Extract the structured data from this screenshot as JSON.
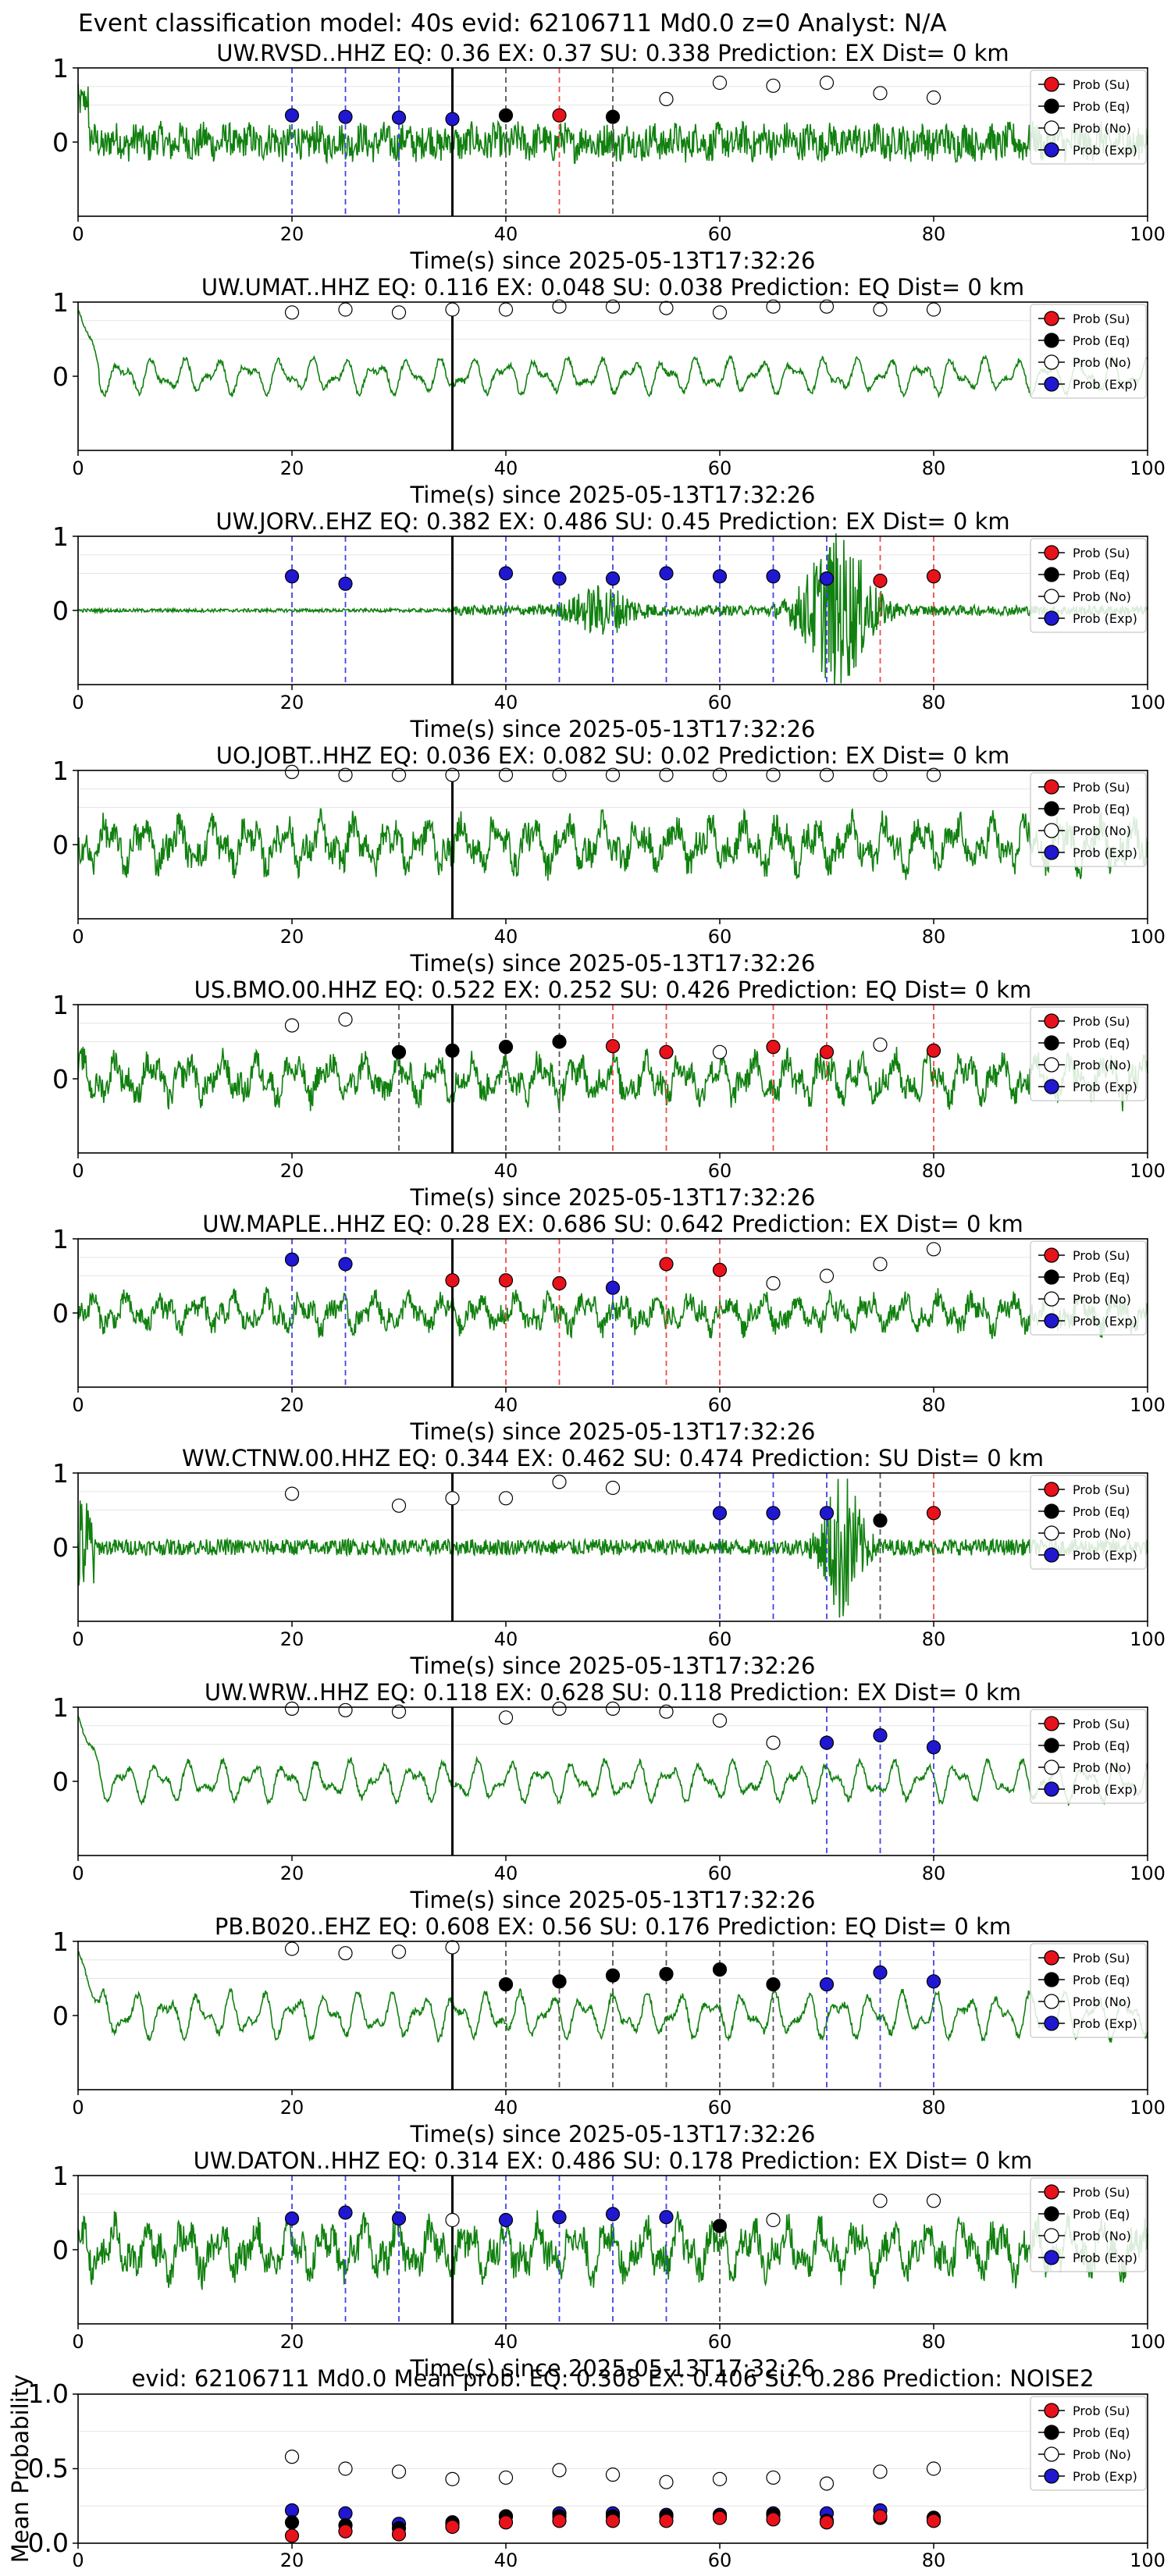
{
  "suptitle": "Event classification model: 40s evid: 62106711 Md0.0 z=0 Analyst: N/A",
  "legend": [
    "Prob (Su)",
    "Prob (Eq)",
    "Prob (No)",
    "Prob (Exp)"
  ],
  "colors": {
    "su": "#e8121b",
    "eq": "#000000",
    "no": "#ffffff",
    "exp": "#1f18d0",
    "wave": "#118010",
    "su_line": "#ef4c4c",
    "eq_line": "#555555",
    "exp_line": "#4343e6"
  },
  "chart_data": [
    {
      "type": "line",
      "title": "UW.RVSD..HHZ   EQ: 0.36   EX: 0.37   SU: 0.338   Prediction: EX    Dist= 0 km",
      "xlabel": "Time(s) since 2025-05-13T17:32:26",
      "xlim": [
        0,
        100
      ],
      "ylim": [
        -1,
        1
      ],
      "xticks": [
        0,
        20,
        40,
        60,
        80,
        100
      ],
      "yticks": [
        0,
        1
      ],
      "onset": 35,
      "trace": {
        "style": "broadband",
        "amp": 0.32
      },
      "points": [
        {
          "t": 20,
          "p": 0.36,
          "c": "exp"
        },
        {
          "t": 25,
          "p": 0.34,
          "c": "exp"
        },
        {
          "t": 30,
          "p": 0.33,
          "c": "exp"
        },
        {
          "t": 35,
          "p": 0.31,
          "c": "exp"
        },
        {
          "t": 40,
          "p": 0.36,
          "c": "eq"
        },
        {
          "t": 45,
          "p": 0.36,
          "c": "su"
        },
        {
          "t": 50,
          "p": 0.34,
          "c": "eq"
        },
        {
          "t": 55,
          "p": 0.58,
          "c": "no"
        },
        {
          "t": 60,
          "p": 0.8,
          "c": "no"
        },
        {
          "t": 65,
          "p": 0.76,
          "c": "no"
        },
        {
          "t": 70,
          "p": 0.8,
          "c": "no"
        },
        {
          "t": 75,
          "p": 0.66,
          "c": "no"
        },
        {
          "t": 80,
          "p": 0.6,
          "c": "no"
        }
      ]
    },
    {
      "type": "line",
      "title": "UW.UMAT..HHZ   EQ: 0.116  EX: 0.048  SU: 0.038   Prediction: EQ    Dist= 0 km",
      "xlabel": "Time(s) since 2025-05-13T17:32:26",
      "xlim": [
        0,
        100
      ],
      "ylim": [
        -1,
        1
      ],
      "xticks": [
        0,
        20,
        40,
        60,
        80,
        100
      ],
      "yticks": [
        0,
        1
      ],
      "onset": 35,
      "trace": {
        "style": "smooth",
        "amp": 0.28
      },
      "points": [
        {
          "t": 20,
          "p": 0.86,
          "c": "no"
        },
        {
          "t": 25,
          "p": 0.9,
          "c": "no"
        },
        {
          "t": 30,
          "p": 0.86,
          "c": "no"
        },
        {
          "t": 35,
          "p": 0.9,
          "c": "no"
        },
        {
          "t": 40,
          "p": 0.9,
          "c": "no"
        },
        {
          "t": 45,
          "p": 0.94,
          "c": "no"
        },
        {
          "t": 50,
          "p": 0.94,
          "c": "no"
        },
        {
          "t": 55,
          "p": 0.92,
          "c": "no"
        },
        {
          "t": 60,
          "p": 0.86,
          "c": "no"
        },
        {
          "t": 65,
          "p": 0.94,
          "c": "no"
        },
        {
          "t": 70,
          "p": 0.94,
          "c": "no"
        },
        {
          "t": 75,
          "p": 0.9,
          "c": "no"
        },
        {
          "t": 80,
          "p": 0.9,
          "c": "no"
        }
      ]
    },
    {
      "type": "line",
      "title": "UW.JORV..EHZ   EQ: 0.382  EX: 0.486  SU: 0.45   Prediction: EX    Dist= 0 km",
      "xlabel": "Time(s) since 2025-05-13T17:32:26",
      "xlim": [
        0,
        100
      ],
      "ylim": [
        -1,
        1
      ],
      "xticks": [
        0,
        20,
        40,
        60,
        80,
        100
      ],
      "yticks": [
        0,
        1
      ],
      "onset": 35,
      "trace": {
        "style": "bursts",
        "amp": 0.04
      },
      "points": [
        {
          "t": 20,
          "p": 0.46,
          "c": "exp"
        },
        {
          "t": 25,
          "p": 0.36,
          "c": "exp"
        },
        {
          "t": 40,
          "p": 0.5,
          "c": "exp"
        },
        {
          "t": 45,
          "p": 0.43,
          "c": "exp"
        },
        {
          "t": 50,
          "p": 0.43,
          "c": "exp"
        },
        {
          "t": 55,
          "p": 0.5,
          "c": "exp"
        },
        {
          "t": 60,
          "p": 0.46,
          "c": "exp"
        },
        {
          "t": 65,
          "p": 0.46,
          "c": "exp"
        },
        {
          "t": 70,
          "p": 0.43,
          "c": "exp"
        },
        {
          "t": 75,
          "p": 0.4,
          "c": "su"
        },
        {
          "t": 80,
          "p": 0.46,
          "c": "su"
        }
      ]
    },
    {
      "type": "line",
      "title": "UO.JOBT..HHZ   EQ: 0.036  EX: 0.082  SU: 0.02   Prediction: EX    Dist= 0 km",
      "xlabel": "Time(s) since 2025-05-13T17:32:26",
      "xlim": [
        0,
        100
      ],
      "ylim": [
        -1,
        1
      ],
      "xticks": [
        0,
        20,
        40,
        60,
        80,
        100
      ],
      "yticks": [
        0,
        1
      ],
      "onset": 35,
      "trace": {
        "style": "rough",
        "amp": 0.42
      },
      "points": [
        {
          "t": 20,
          "p": 0.98,
          "c": "no"
        },
        {
          "t": 25,
          "p": 0.94,
          "c": "no"
        },
        {
          "t": 30,
          "p": 0.94,
          "c": "no"
        },
        {
          "t": 35,
          "p": 0.94,
          "c": "no"
        },
        {
          "t": 40,
          "p": 0.94,
          "c": "no"
        },
        {
          "t": 45,
          "p": 0.94,
          "c": "no"
        },
        {
          "t": 50,
          "p": 0.94,
          "c": "no"
        },
        {
          "t": 55,
          "p": 0.94,
          "c": "no"
        },
        {
          "t": 60,
          "p": 0.94,
          "c": "no"
        },
        {
          "t": 65,
          "p": 0.94,
          "c": "no"
        },
        {
          "t": 70,
          "p": 0.94,
          "c": "no"
        },
        {
          "t": 75,
          "p": 0.94,
          "c": "no"
        },
        {
          "t": 80,
          "p": 0.94,
          "c": "no"
        }
      ]
    },
    {
      "type": "line",
      "title": "US.BMO.00.HHZ   EQ: 0.522  EX: 0.252  SU: 0.426   Prediction: EQ    Dist= 0 km",
      "xlabel": "Time(s) since 2025-05-13T17:32:26",
      "xlim": [
        0,
        100
      ],
      "ylim": [
        -1,
        1
      ],
      "xticks": [
        0,
        20,
        40,
        60,
        80,
        100
      ],
      "yticks": [
        0,
        1
      ],
      "onset": 35,
      "trace": {
        "style": "rough",
        "amp": 0.38
      },
      "points": [
        {
          "t": 20,
          "p": 0.72,
          "c": "no"
        },
        {
          "t": 25,
          "p": 0.8,
          "c": "no"
        },
        {
          "t": 30,
          "p": 0.36,
          "c": "eq"
        },
        {
          "t": 35,
          "p": 0.38,
          "c": "eq"
        },
        {
          "t": 40,
          "p": 0.43,
          "c": "eq"
        },
        {
          "t": 45,
          "p": 0.5,
          "c": "eq"
        },
        {
          "t": 50,
          "p": 0.44,
          "c": "su"
        },
        {
          "t": 55,
          "p": 0.36,
          "c": "su"
        },
        {
          "t": 60,
          "p": 0.36,
          "c": "no"
        },
        {
          "t": 65,
          "p": 0.43,
          "c": "su"
        },
        {
          "t": 70,
          "p": 0.36,
          "c": "su"
        },
        {
          "t": 75,
          "p": 0.46,
          "c": "no"
        },
        {
          "t": 80,
          "p": 0.38,
          "c": "su"
        }
      ]
    },
    {
      "type": "line",
      "title": "UW.MAPLE..HHZ   EQ: 0.28  EX: 0.686  SU: 0.642   Prediction: EX    Dist= 0 km",
      "xlabel": "Time(s) since 2025-05-13T17:32:26",
      "xlim": [
        0,
        100
      ],
      "ylim": [
        -1,
        1
      ],
      "xticks": [
        0,
        20,
        40,
        60,
        80,
        100
      ],
      "yticks": [
        0,
        1
      ],
      "onset": 35,
      "trace": {
        "style": "rough",
        "amp": 0.3
      },
      "points": [
        {
          "t": 20,
          "p": 0.72,
          "c": "exp"
        },
        {
          "t": 25,
          "p": 0.66,
          "c": "exp"
        },
        {
          "t": 35,
          "p": 0.44,
          "c": "su"
        },
        {
          "t": 40,
          "p": 0.44,
          "c": "su"
        },
        {
          "t": 45,
          "p": 0.4,
          "c": "su"
        },
        {
          "t": 50,
          "p": 0.34,
          "c": "exp"
        },
        {
          "t": 55,
          "p": 0.66,
          "c": "su"
        },
        {
          "t": 60,
          "p": 0.58,
          "c": "su"
        },
        {
          "t": 65,
          "p": 0.4,
          "c": "no"
        },
        {
          "t": 70,
          "p": 0.5,
          "c": "no"
        },
        {
          "t": 75,
          "p": 0.66,
          "c": "no"
        },
        {
          "t": 80,
          "p": 0.86,
          "c": "no"
        }
      ]
    },
    {
      "type": "line",
      "title": "WW.CTNW.00.HHZ   EQ: 0.344  EX: 0.462  SU: 0.474   Prediction: SU    Dist= 0 km",
      "xlabel": "Time(s) since 2025-05-13T17:32:26",
      "xlim": [
        0,
        100
      ],
      "ylim": [
        -1,
        1
      ],
      "xticks": [
        0,
        20,
        40,
        60,
        80,
        100
      ],
      "yticks": [
        0,
        1
      ],
      "onset": 35,
      "trace": {
        "style": "late",
        "amp": 0.08
      },
      "points": [
        {
          "t": 20,
          "p": 0.72,
          "c": "no"
        },
        {
          "t": 30,
          "p": 0.56,
          "c": "no"
        },
        {
          "t": 35,
          "p": 0.66,
          "c": "no"
        },
        {
          "t": 40,
          "p": 0.66,
          "c": "no"
        },
        {
          "t": 45,
          "p": 0.88,
          "c": "no"
        },
        {
          "t": 50,
          "p": 0.8,
          "c": "no"
        },
        {
          "t": 60,
          "p": 0.46,
          "c": "exp"
        },
        {
          "t": 65,
          "p": 0.46,
          "c": "exp"
        },
        {
          "t": 70,
          "p": 0.46,
          "c": "exp"
        },
        {
          "t": 75,
          "p": 0.36,
          "c": "eq"
        },
        {
          "t": 80,
          "p": 0.46,
          "c": "su"
        }
      ]
    },
    {
      "type": "line",
      "title": "UW.WRW..HHZ   EQ: 0.118  EX: 0.628  SU: 0.118   Prediction: EX    Dist= 0 km",
      "xlabel": "Time(s) since 2025-05-13T17:32:26",
      "xlim": [
        0,
        100
      ],
      "ylim": [
        -1,
        1
      ],
      "xticks": [
        0,
        20,
        40,
        60,
        80,
        100
      ],
      "yticks": [
        0,
        1
      ],
      "onset": 35,
      "trace": {
        "style": "smooth",
        "amp": 0.32
      },
      "points": [
        {
          "t": 20,
          "p": 0.98,
          "c": "no"
        },
        {
          "t": 25,
          "p": 0.96,
          "c": "no"
        },
        {
          "t": 30,
          "p": 0.94,
          "c": "no"
        },
        {
          "t": 40,
          "p": 0.86,
          "c": "no"
        },
        {
          "t": 45,
          "p": 0.98,
          "c": "no"
        },
        {
          "t": 50,
          "p": 0.98,
          "c": "no"
        },
        {
          "t": 55,
          "p": 0.94,
          "c": "no"
        },
        {
          "t": 60,
          "p": 0.82,
          "c": "no"
        },
        {
          "t": 65,
          "p": 0.52,
          "c": "no"
        },
        {
          "t": 70,
          "p": 0.52,
          "c": "exp"
        },
        {
          "t": 75,
          "p": 0.62,
          "c": "exp"
        },
        {
          "t": 80,
          "p": 0.46,
          "c": "exp"
        }
      ]
    },
    {
      "type": "line",
      "title": "PB.B020..EHZ   EQ: 0.608  EX: 0.56  SU: 0.176   Prediction: EQ    Dist= 0 km",
      "xlabel": "Time(s) since 2025-05-13T17:32:26",
      "xlim": [
        0,
        100
      ],
      "ylim": [
        -1,
        1
      ],
      "xticks": [
        0,
        20,
        40,
        60,
        80,
        100
      ],
      "yticks": [
        0,
        1
      ],
      "onset": 35,
      "trace": {
        "style": "smooth",
        "amp": 0.36
      },
      "points": [
        {
          "t": 20,
          "p": 0.9,
          "c": "no"
        },
        {
          "t": 25,
          "p": 0.84,
          "c": "no"
        },
        {
          "t": 30,
          "p": 0.86,
          "c": "no"
        },
        {
          "t": 35,
          "p": 0.92,
          "c": "no"
        },
        {
          "t": 40,
          "p": 0.42,
          "c": "eq"
        },
        {
          "t": 45,
          "p": 0.46,
          "c": "eq"
        },
        {
          "t": 50,
          "p": 0.54,
          "c": "eq"
        },
        {
          "t": 55,
          "p": 0.56,
          "c": "eq"
        },
        {
          "t": 60,
          "p": 0.62,
          "c": "eq"
        },
        {
          "t": 65,
          "p": 0.42,
          "c": "eq"
        },
        {
          "t": 70,
          "p": 0.42,
          "c": "exp"
        },
        {
          "t": 75,
          "p": 0.58,
          "c": "exp"
        },
        {
          "t": 80,
          "p": 0.46,
          "c": "exp"
        }
      ]
    },
    {
      "type": "line",
      "title": "UW.DATON..HHZ   EQ: 0.314  EX: 0.486  SU: 0.178   Prediction: EX    Dist= 0 km",
      "xlabel": "Time(s) since 2025-05-13T17:32:26",
      "xlim": [
        0,
        100
      ],
      "ylim": [
        -1,
        1
      ],
      "xticks": [
        0,
        20,
        40,
        60,
        80,
        100
      ],
      "yticks": [
        0,
        1
      ],
      "onset": 35,
      "trace": {
        "style": "rough",
        "amp": 0.46
      },
      "points": [
        {
          "t": 20,
          "p": 0.42,
          "c": "exp"
        },
        {
          "t": 25,
          "p": 0.5,
          "c": "exp"
        },
        {
          "t": 30,
          "p": 0.42,
          "c": "exp"
        },
        {
          "t": 35,
          "p": 0.4,
          "c": "no"
        },
        {
          "t": 40,
          "p": 0.4,
          "c": "exp"
        },
        {
          "t": 45,
          "p": 0.44,
          "c": "exp"
        },
        {
          "t": 50,
          "p": 0.48,
          "c": "exp"
        },
        {
          "t": 55,
          "p": 0.44,
          "c": "exp"
        },
        {
          "t": 60,
          "p": 0.32,
          "c": "eq"
        },
        {
          "t": 65,
          "p": 0.4,
          "c": "no"
        },
        {
          "t": 75,
          "p": 0.66,
          "c": "no"
        },
        {
          "t": 80,
          "p": 0.66,
          "c": "no"
        }
      ]
    },
    {
      "type": "scatter",
      "title": "evid: 62106711   Md0.0    Mean prob:   EQ: 0.308  EX: 0.406  SU: 0.286   Prediction: NOISE2",
      "ylabel": "Mean Probability",
      "xlim": [
        0,
        100
      ],
      "ylim": [
        0,
        1
      ],
      "xticks": [
        0,
        20,
        40,
        60,
        80,
        100
      ],
      "yticks": [
        0.0,
        0.5,
        1.0
      ],
      "yticklabels": [
        "0.0",
        "0.5",
        "1.0"
      ],
      "series": {
        "x": [
          20,
          25,
          30,
          35,
          40,
          45,
          50,
          55,
          60,
          65,
          70,
          75,
          80
        ],
        "su": [
          0.05,
          0.08,
          0.06,
          0.11,
          0.14,
          0.15,
          0.15,
          0.15,
          0.17,
          0.16,
          0.14,
          0.18,
          0.15
        ],
        "eq": [
          0.14,
          0.12,
          0.1,
          0.14,
          0.18,
          0.18,
          0.18,
          0.18,
          0.18,
          0.19,
          0.15,
          0.17,
          0.17
        ],
        "no": [
          0.58,
          0.5,
          0.48,
          0.43,
          0.44,
          0.49,
          0.46,
          0.41,
          0.43,
          0.44,
          0.4,
          0.48,
          0.5
        ],
        "exp": [
          0.22,
          0.2,
          0.13,
          0.13,
          0.18,
          0.2,
          0.2,
          0.19,
          0.19,
          0.2,
          0.2,
          0.22,
          0.17
        ]
      }
    }
  ]
}
